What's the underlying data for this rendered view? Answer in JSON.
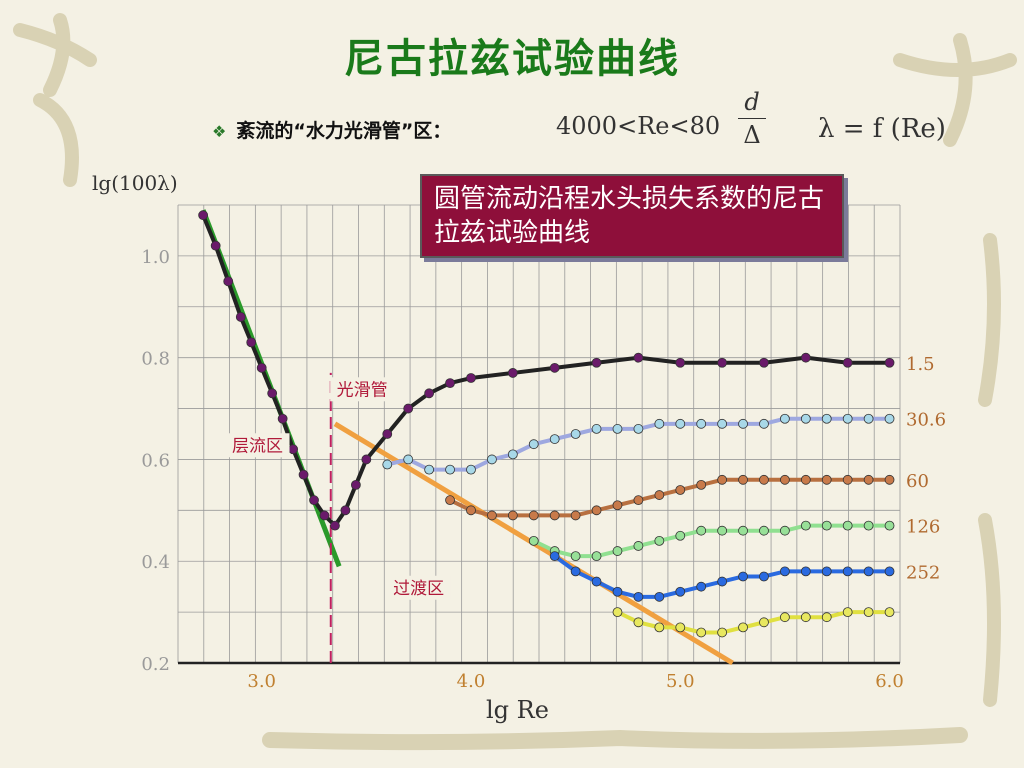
{
  "title": "尼古拉兹试验曲线",
  "bullet": {
    "symbol": "❖",
    "text": "紊流的“水力光滑管”区：",
    "range_text": "4000<Re<80",
    "fraction_numerator": "d",
    "fraction_denominator": "Δ",
    "lambda_formula": "λ = f (Re)"
  },
  "callout_text": "圆管流动沿程水头损失系数的尼古拉兹试验曲线",
  "chart_data": {
    "type": "scatter",
    "title": "",
    "xlabel": "lg Re",
    "ylabel": "lg(100λ)",
    "xlim": [
      2.6,
      6.05
    ],
    "ylim": [
      0.2,
      1.1
    ],
    "xticks": [
      3.0,
      4.0,
      5.0,
      6.0
    ],
    "xtick_labels": [
      "3.0",
      "4.0",
      "5.0",
      "6.0"
    ],
    "yticks": [
      0.2,
      0.4,
      0.6,
      0.8,
      1.0
    ],
    "ytick_labels": [
      "0.2",
      "0.4",
      "0.6",
      "0.8",
      "1.0"
    ],
    "grid": true,
    "region_labels": [
      {
        "text": "层流区",
        "x": 2.98,
        "y": 0.62
      },
      {
        "text": "光滑管",
        "x": 3.48,
        "y": 0.73
      },
      {
        "text": "过渡区",
        "x": 3.75,
        "y": 0.34
      }
    ],
    "guide_lines": [
      {
        "name": "laminar",
        "color": "#2a9a2a",
        "x": [
          2.72,
          3.37
        ],
        "y": [
          1.09,
          0.39
        ]
      },
      {
        "name": "smooth",
        "color": "#f0a040",
        "x": [
          3.35,
          5.25
        ],
        "y": [
          0.67,
          0.2
        ]
      },
      {
        "name": "critical",
        "color": "#c02060",
        "dashed": true,
        "x": [
          3.33,
          3.33
        ],
        "y": [
          0.2,
          0.77
        ]
      }
    ],
    "series": [
      {
        "name": "1.5",
        "color": "#6a1a6a",
        "line_color": "#222222",
        "x": [
          2.72,
          2.78,
          2.84,
          2.9,
          2.95,
          3.0,
          3.05,
          3.1,
          3.15,
          3.2,
          3.25,
          3.3,
          3.35,
          3.4,
          3.45,
          3.5,
          3.6,
          3.7,
          3.8,
          3.9,
          4.0,
          4.2,
          4.4,
          4.6,
          4.8,
          5.0,
          5.2,
          5.4,
          5.6,
          5.8,
          6.0
        ],
        "y": [
          1.08,
          1.02,
          0.95,
          0.88,
          0.83,
          0.78,
          0.73,
          0.68,
          0.62,
          0.57,
          0.52,
          0.49,
          0.47,
          0.5,
          0.55,
          0.6,
          0.65,
          0.7,
          0.73,
          0.75,
          0.76,
          0.77,
          0.78,
          0.79,
          0.8,
          0.79,
          0.79,
          0.79,
          0.8,
          0.79,
          0.79
        ]
      },
      {
        "name": "30.6",
        "color": "#a8d8e8",
        "line_color": "#9ea8e0",
        "x": [
          3.6,
          3.7,
          3.8,
          3.9,
          4.0,
          4.1,
          4.2,
          4.3,
          4.4,
          4.5,
          4.6,
          4.7,
          4.8,
          4.9,
          5.0,
          5.1,
          5.2,
          5.3,
          5.4,
          5.5,
          5.6,
          5.7,
          5.8,
          5.9,
          6.0
        ],
        "y": [
          0.59,
          0.6,
          0.58,
          0.58,
          0.58,
          0.6,
          0.61,
          0.63,
          0.64,
          0.65,
          0.66,
          0.66,
          0.66,
          0.67,
          0.67,
          0.67,
          0.67,
          0.67,
          0.67,
          0.68,
          0.68,
          0.68,
          0.68,
          0.68,
          0.68
        ]
      },
      {
        "name": "60",
        "color": "#c87a4a",
        "line_color": "#b87040",
        "x": [
          3.9,
          4.0,
          4.1,
          4.2,
          4.3,
          4.4,
          4.5,
          4.6,
          4.7,
          4.8,
          4.9,
          5.0,
          5.1,
          5.2,
          5.3,
          5.4,
          5.5,
          5.6,
          5.7,
          5.8,
          5.9,
          6.0
        ],
        "y": [
          0.52,
          0.5,
          0.49,
          0.49,
          0.49,
          0.49,
          0.49,
          0.5,
          0.51,
          0.52,
          0.53,
          0.54,
          0.55,
          0.56,
          0.56,
          0.56,
          0.56,
          0.56,
          0.56,
          0.56,
          0.56,
          0.56
        ]
      },
      {
        "name": "126",
        "color": "#98e098",
        "line_color": "#90e090",
        "x": [
          4.3,
          4.4,
          4.5,
          4.6,
          4.7,
          4.8,
          4.9,
          5.0,
          5.1,
          5.2,
          5.3,
          5.4,
          5.5,
          5.6,
          5.7,
          5.8,
          5.9,
          6.0
        ],
        "y": [
          0.44,
          0.42,
          0.41,
          0.41,
          0.42,
          0.43,
          0.44,
          0.45,
          0.46,
          0.46,
          0.46,
          0.46,
          0.46,
          0.47,
          0.47,
          0.47,
          0.47,
          0.47
        ]
      },
      {
        "name": "252",
        "color": "#2a6ae0",
        "line_color": "#2a6ae0",
        "x": [
          4.4,
          4.5,
          4.6,
          4.7,
          4.8,
          4.9,
          5.0,
          5.1,
          5.2,
          5.3,
          5.4,
          5.5,
          5.6,
          5.7,
          5.8,
          5.9,
          6.0
        ],
        "y": [
          0.41,
          0.38,
          0.36,
          0.34,
          0.33,
          0.33,
          0.34,
          0.35,
          0.36,
          0.37,
          0.37,
          0.38,
          0.38,
          0.38,
          0.38,
          0.38,
          0.38
        ]
      },
      {
        "name": "",
        "color": "#e8e860",
        "line_color": "#e0e040",
        "x": [
          4.7,
          4.8,
          4.9,
          5.0,
          5.1,
          5.2,
          5.3,
          5.4,
          5.5,
          5.6,
          5.7,
          5.8,
          5.9,
          6.0
        ],
        "y": [
          0.3,
          0.28,
          0.27,
          0.27,
          0.26,
          0.26,
          0.27,
          0.28,
          0.29,
          0.29,
          0.29,
          0.3,
          0.3,
          0.3
        ]
      }
    ]
  }
}
